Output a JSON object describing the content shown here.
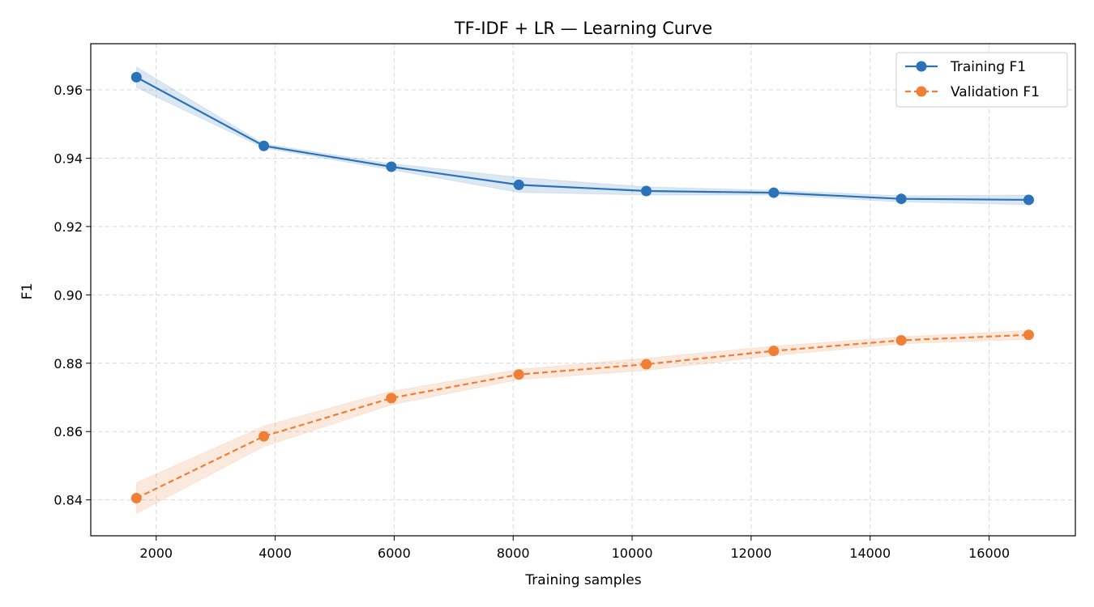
{
  "chart_data": {
    "type": "line",
    "title": "TF-IDF + LR — Learning Curve",
    "xlabel": "Training samples",
    "ylabel": "F1",
    "xlim": [
      900,
      17450
    ],
    "ylim": [
      0.8295,
      0.9735
    ],
    "xticks": [
      2000,
      4000,
      6000,
      8000,
      10000,
      12000,
      14000,
      16000
    ],
    "yticks": [
      0.84,
      0.86,
      0.88,
      0.9,
      0.92,
      0.94,
      0.96
    ],
    "ytick_labels": [
      "0.84",
      "0.86",
      "0.88",
      "0.90",
      "0.92",
      "0.94",
      "0.96"
    ],
    "grid": true,
    "legend_position": "upper right",
    "x": [
      1667,
      3809,
      5952,
      8095,
      10238,
      12380,
      14523,
      16666
    ],
    "series": [
      {
        "name": "Training F1",
        "color": "#2c72b8",
        "line_style": "solid",
        "marker": "circle",
        "values": [
          0.9637,
          0.9436,
          0.9375,
          0.9322,
          0.9304,
          0.9299,
          0.9281,
          0.9278
        ],
        "band_lower": [
          0.9607,
          0.943,
          0.9366,
          0.93,
          0.9292,
          0.9292,
          0.9272,
          0.9264
        ],
        "band_upper": [
          0.9667,
          0.9442,
          0.9384,
          0.9344,
          0.9316,
          0.9306,
          0.929,
          0.9292
        ]
      },
      {
        "name": "Validation F1",
        "color": "#ef7f35",
        "line_style": "dashed",
        "marker": "circle",
        "values": [
          0.8405,
          0.8586,
          0.8698,
          0.8767,
          0.8797,
          0.8836,
          0.8867,
          0.8883
        ],
        "band_lower": [
          0.836,
          0.8556,
          0.8678,
          0.8752,
          0.8779,
          0.8822,
          0.8857,
          0.887
        ],
        "band_upper": [
          0.845,
          0.8616,
          0.8718,
          0.8782,
          0.8815,
          0.885,
          0.8877,
          0.8896
        ]
      }
    ]
  }
}
